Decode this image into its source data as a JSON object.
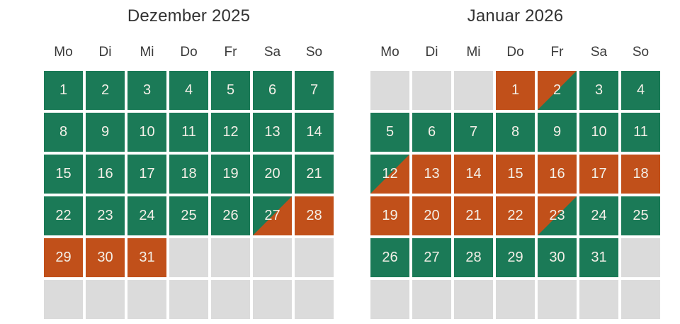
{
  "colors": {
    "available": "#1b7a57",
    "booked": "#c1501a",
    "empty": "#dbdbdb",
    "day_text": "#f3efe7",
    "heading_text": "#333333"
  },
  "legend_semantics": {
    "available": "green cell",
    "booked": "orange cell",
    "available-booked": "diagonal green to orange (changeover start)",
    "booked-available": "diagonal orange to green (changeover end)",
    "empty": "gray filler cell"
  },
  "calendars": [
    {
      "title": "Dezember 2025",
      "weekdays": [
        "Mo",
        "Di",
        "Mi",
        "Do",
        "Fr",
        "Sa",
        "So"
      ],
      "cells": [
        {
          "day": "1",
          "state": "available"
        },
        {
          "day": "2",
          "state": "available"
        },
        {
          "day": "3",
          "state": "available"
        },
        {
          "day": "4",
          "state": "available"
        },
        {
          "day": "5",
          "state": "available"
        },
        {
          "day": "6",
          "state": "available"
        },
        {
          "day": "7",
          "state": "available"
        },
        {
          "day": "8",
          "state": "available"
        },
        {
          "day": "9",
          "state": "available"
        },
        {
          "day": "10",
          "state": "available"
        },
        {
          "day": "11",
          "state": "available"
        },
        {
          "day": "12",
          "state": "available"
        },
        {
          "day": "13",
          "state": "available"
        },
        {
          "day": "14",
          "state": "available"
        },
        {
          "day": "15",
          "state": "available"
        },
        {
          "day": "16",
          "state": "available"
        },
        {
          "day": "17",
          "state": "available"
        },
        {
          "day": "18",
          "state": "available"
        },
        {
          "day": "19",
          "state": "available"
        },
        {
          "day": "20",
          "state": "available"
        },
        {
          "day": "21",
          "state": "available"
        },
        {
          "day": "22",
          "state": "available"
        },
        {
          "day": "23",
          "state": "available"
        },
        {
          "day": "24",
          "state": "available"
        },
        {
          "day": "25",
          "state": "available"
        },
        {
          "day": "26",
          "state": "available"
        },
        {
          "day": "27",
          "state": "available-booked"
        },
        {
          "day": "28",
          "state": "booked"
        },
        {
          "day": "29",
          "state": "booked"
        },
        {
          "day": "30",
          "state": "booked"
        },
        {
          "day": "31",
          "state": "booked"
        },
        {
          "day": "",
          "state": "empty"
        },
        {
          "day": "",
          "state": "empty"
        },
        {
          "day": "",
          "state": "empty"
        },
        {
          "day": "",
          "state": "empty"
        },
        {
          "day": "",
          "state": "empty"
        },
        {
          "day": "",
          "state": "empty"
        },
        {
          "day": "",
          "state": "empty"
        },
        {
          "day": "",
          "state": "empty"
        },
        {
          "day": "",
          "state": "empty"
        },
        {
          "day": "",
          "state": "empty"
        },
        {
          "day": "",
          "state": "empty"
        }
      ]
    },
    {
      "title": "Januar 2026",
      "weekdays": [
        "Mo",
        "Di",
        "Mi",
        "Do",
        "Fr",
        "Sa",
        "So"
      ],
      "cells": [
        {
          "day": "",
          "state": "empty"
        },
        {
          "day": "",
          "state": "empty"
        },
        {
          "day": "",
          "state": "empty"
        },
        {
          "day": "1",
          "state": "booked"
        },
        {
          "day": "2",
          "state": "booked-available"
        },
        {
          "day": "3",
          "state": "available"
        },
        {
          "day": "4",
          "state": "available"
        },
        {
          "day": "5",
          "state": "available"
        },
        {
          "day": "6",
          "state": "available"
        },
        {
          "day": "7",
          "state": "available"
        },
        {
          "day": "8",
          "state": "available"
        },
        {
          "day": "9",
          "state": "available"
        },
        {
          "day": "10",
          "state": "available"
        },
        {
          "day": "11",
          "state": "available"
        },
        {
          "day": "12",
          "state": "available-booked"
        },
        {
          "day": "13",
          "state": "booked"
        },
        {
          "day": "14",
          "state": "booked"
        },
        {
          "day": "15",
          "state": "booked"
        },
        {
          "day": "16",
          "state": "booked"
        },
        {
          "day": "17",
          "state": "booked"
        },
        {
          "day": "18",
          "state": "booked"
        },
        {
          "day": "19",
          "state": "booked"
        },
        {
          "day": "20",
          "state": "booked"
        },
        {
          "day": "21",
          "state": "booked"
        },
        {
          "day": "22",
          "state": "booked"
        },
        {
          "day": "23",
          "state": "booked-available"
        },
        {
          "day": "24",
          "state": "available"
        },
        {
          "day": "25",
          "state": "available"
        },
        {
          "day": "26",
          "state": "available"
        },
        {
          "day": "27",
          "state": "available"
        },
        {
          "day": "28",
          "state": "available"
        },
        {
          "day": "29",
          "state": "available"
        },
        {
          "day": "30",
          "state": "available"
        },
        {
          "day": "31",
          "state": "available"
        },
        {
          "day": "",
          "state": "empty"
        },
        {
          "day": "",
          "state": "empty"
        },
        {
          "day": "",
          "state": "empty"
        },
        {
          "day": "",
          "state": "empty"
        },
        {
          "day": "",
          "state": "empty"
        },
        {
          "day": "",
          "state": "empty"
        },
        {
          "day": "",
          "state": "empty"
        },
        {
          "day": "",
          "state": "empty"
        }
      ]
    }
  ]
}
